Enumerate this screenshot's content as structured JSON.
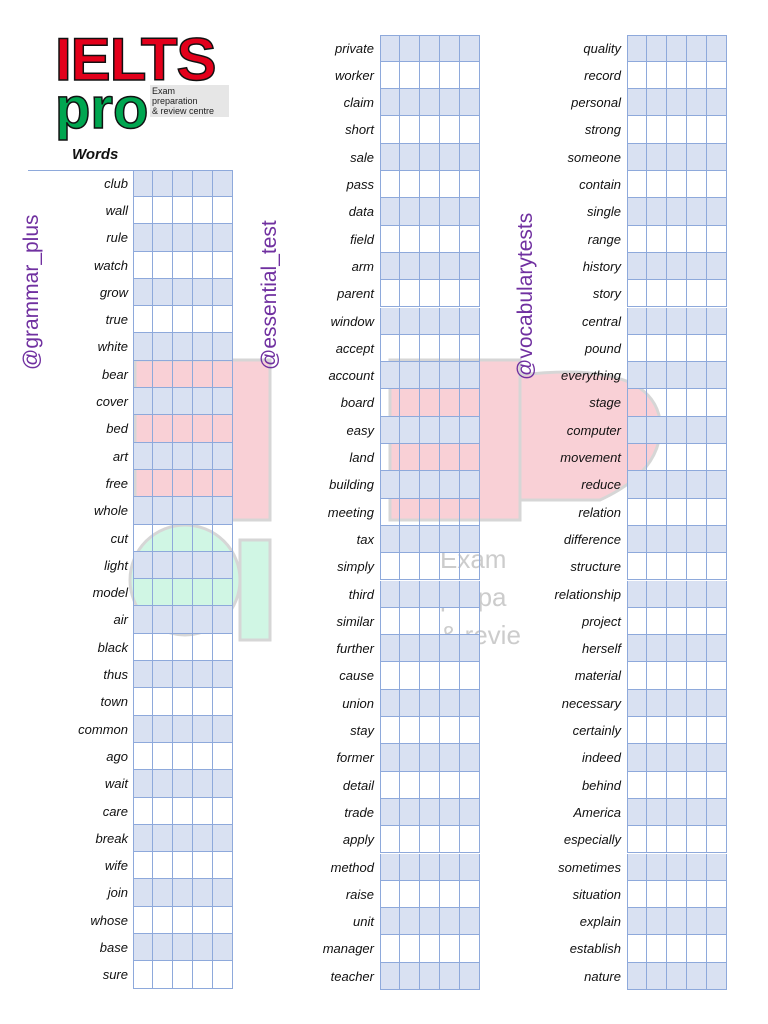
{
  "logo": {
    "main": "IELTS",
    "sub": "pro",
    "tagline": [
      "Exam",
      "preparation",
      "& review centre"
    ]
  },
  "header": {
    "words_label": "Words"
  },
  "handles": [
    "@grammar_plus",
    "@essential_test",
    "@vocabularytests"
  ],
  "watermark": {
    "text_lines": [
      "Exam",
      "prepa",
      "& revie"
    ]
  },
  "columns": [
    [
      "club",
      "wall",
      "rule",
      "watch",
      "grow",
      "true",
      "white",
      "bear",
      "cover",
      "bed",
      "art",
      "free",
      "whole",
      "cut",
      "light",
      "model",
      "air",
      "black",
      "thus",
      "town",
      "common",
      "ago",
      "wait",
      "care",
      "break",
      "wife",
      "join",
      "whose",
      "base",
      "sure"
    ],
    [
      "private",
      "worker",
      "claim",
      "short",
      "sale",
      "pass",
      "data",
      "field",
      "arm",
      "parent",
      "window",
      "accept",
      "account",
      "board",
      "easy",
      "land",
      "building",
      "meeting",
      "tax",
      "simply",
      "third",
      "similar",
      "further",
      "cause",
      "union",
      "stay",
      "former",
      "detail",
      "trade",
      "apply",
      "method",
      "raise",
      "unit",
      "manager",
      "teacher"
    ],
    [
      "quality",
      "record",
      "personal",
      "strong",
      "someone",
      "contain",
      "single",
      "range",
      "history",
      "story",
      "central",
      "pound",
      "everything",
      "stage",
      "computer",
      "movement",
      "reduce",
      "relation",
      "difference",
      "structure",
      "relationship",
      "project",
      "herself",
      "material",
      "necessary",
      "certainly",
      "indeed",
      "behind",
      "America",
      "especially",
      "sometimes",
      "situation",
      "explain",
      "establish",
      "nature"
    ]
  ],
  "colors": {
    "shade": "#d9e1f2",
    "grid": "#8ea9db",
    "handle": "#7030a0",
    "logo_red": "#e3001b",
    "logo_green": "#00a650"
  }
}
